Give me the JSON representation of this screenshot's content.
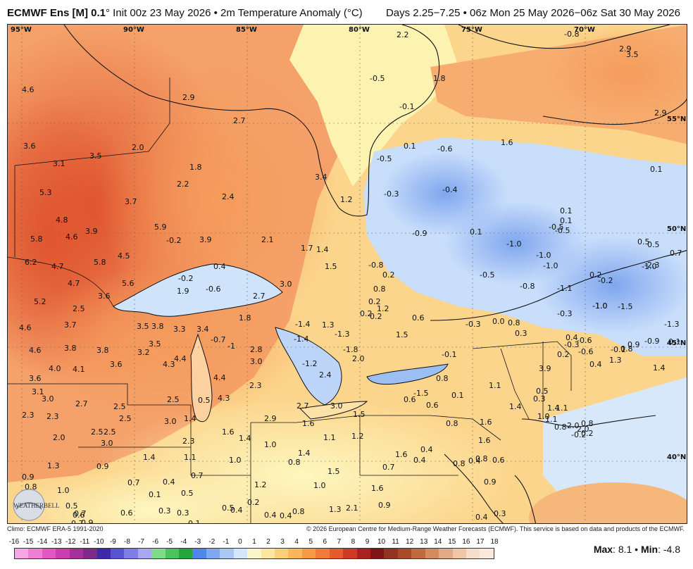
{
  "header": {
    "title_left_bold": "ECMWF Ens [M] 0.1",
    "title_left_rest": "° Init 00z 23 May 2026 • 2m Temperature Anomaly (°C)",
    "title_right": "Days 2.25−7.25 • 06z Mon 25 May 2026−06z Sat 30 May 2026"
  },
  "map": {
    "longitude_labels": [
      "95°W",
      "90°W",
      "85°W",
      "80°W",
      "75°W",
      "70°W"
    ],
    "latitude_labels": [
      "55°N",
      "50°N",
      "45°N",
      "40°N"
    ],
    "anomaly_values": [
      {
        "v": "4.6"
      },
      {
        "v": "3.6"
      },
      {
        "v": "3.1"
      },
      {
        "v": "3.5"
      },
      {
        "v": "2.0"
      },
      {
        "v": "1.8"
      },
      {
        "v": "2.9"
      },
      {
        "v": "2.7"
      },
      {
        "v": "2.2"
      },
      {
        "v": "2.4"
      },
      {
        "v": "5.3"
      },
      {
        "v": "3.7"
      },
      {
        "v": "4.8"
      },
      {
        "v": "3.9"
      },
      {
        "v": "5.9"
      },
      {
        "v": "-0.2"
      },
      {
        "v": "3.9"
      },
      {
        "v": "2.1"
      },
      {
        "v": "1.7"
      },
      {
        "v": "1.4"
      },
      {
        "v": "5.8"
      },
      {
        "v": "4.6"
      },
      {
        "v": "4.5"
      },
      {
        "v": "1.5"
      },
      {
        "v": "6.2"
      },
      {
        "v": "4.7"
      },
      {
        "v": "5.8"
      },
      {
        "v": "0.4"
      },
      {
        "v": "-0.8"
      },
      {
        "v": "4.7"
      },
      {
        "v": "5.6"
      },
      {
        "v": "-0.2"
      },
      {
        "v": "-0.6"
      },
      {
        "v": "3.0"
      },
      {
        "v": "0.2"
      },
      {
        "v": "5.2"
      },
      {
        "v": "3.6"
      },
      {
        "v": "1.9"
      },
      {
        "v": "2.7"
      },
      {
        "v": "0.8"
      },
      {
        "v": "2.5"
      },
      {
        "v": "1.2"
      },
      {
        "v": "4.6"
      },
      {
        "v": "3.7"
      },
      {
        "v": "3.5"
      },
      {
        "v": "3.8"
      },
      {
        "v": "3.3"
      },
      {
        "v": "3.4"
      },
      {
        "v": "1.8"
      },
      {
        "v": "-1.4"
      },
      {
        "v": "1.3"
      },
      {
        "v": "-1.3"
      },
      {
        "v": "0.2"
      },
      {
        "v": "0.6"
      },
      {
        "v": "1.5"
      },
      {
        "v": "4.6"
      },
      {
        "v": "3.8"
      },
      {
        "v": "3.8"
      },
      {
        "v": "3.2"
      },
      {
        "v": "3.5"
      },
      {
        "v": "-0.7"
      },
      {
        "v": "-1"
      },
      {
        "v": "2.8"
      },
      {
        "v": "-1.4"
      },
      {
        "v": "-1.8"
      },
      {
        "v": "4.0"
      },
      {
        "v": "4.1"
      },
      {
        "v": "3.6"
      },
      {
        "v": "4.3"
      },
      {
        "v": "4.4"
      },
      {
        "v": "3.0"
      },
      {
        "v": "-1.2"
      },
      {
        "v": "2.0"
      },
      {
        "v": "3.6"
      },
      {
        "v": "4.4"
      },
      {
        "v": "2.3"
      },
      {
        "v": "2.4"
      },
      {
        "v": "3.1"
      },
      {
        "v": "3.0"
      },
      {
        "v": "2.7"
      },
      {
        "v": "2.5"
      },
      {
        "v": "2.5"
      },
      {
        "v": "0.5"
      },
      {
        "v": "4.3"
      },
      {
        "v": "2.5"
      },
      {
        "v": "2.7"
      },
      {
        "v": "3.0"
      },
      {
        "v": "1.5"
      },
      {
        "v": "2.3"
      },
      {
        "v": "2.3"
      },
      {
        "v": "2.5"
      },
      {
        "v": "3.0"
      },
      {
        "v": "3.0"
      },
      {
        "v": "1.4"
      },
      {
        "v": "2.9"
      },
      {
        "v": "1.6"
      },
      {
        "v": "2.0"
      },
      {
        "v": "2.5"
      },
      {
        "v": "2.3"
      },
      {
        "v": "1.6"
      },
      {
        "v": "1.4"
      },
      {
        "v": "1.0"
      },
      {
        "v": "1.1"
      },
      {
        "v": "1.2"
      },
      {
        "v": "1.3"
      },
      {
        "v": "0.9"
      },
      {
        "v": "1.4"
      },
      {
        "v": "1.1"
      },
      {
        "v": "1.0"
      },
      {
        "v": "0.8"
      },
      {
        "v": "1.4"
      },
      {
        "v": "1.6"
      },
      {
        "v": "0.9"
      },
      {
        "v": "0.8"
      },
      {
        "v": "1.0"
      },
      {
        "v": "0.7"
      },
      {
        "v": "0.7"
      },
      {
        "v": "0.4"
      },
      {
        "v": "0.1"
      },
      {
        "v": "0.5"
      },
      {
        "v": "0.7"
      },
      {
        "v": "0.6"
      },
      {
        "v": "0.9"
      },
      {
        "v": "1.2"
      },
      {
        "v": "1.0"
      },
      {
        "v": "1.5"
      },
      {
        "v": "1.6"
      },
      {
        "v": "0.7"
      },
      {
        "v": "0.5"
      },
      {
        "v": "0.7"
      },
      {
        "v": "0.6"
      },
      {
        "v": "0.3"
      },
      {
        "v": "0.5"
      },
      {
        "v": "0.2"
      },
      {
        "v": "0.4"
      },
      {
        "v": "0.4"
      },
      {
        "v": "0.8"
      },
      {
        "v": "1.3"
      },
      {
        "v": "2.1"
      },
      {
        "v": "0.9"
      },
      {
        "v": "0.1"
      },
      {
        "v": "0.3"
      },
      {
        "v": "0.4"
      },
      {
        "v": "2.2"
      },
      {
        "v": "1.8"
      },
      {
        "v": "-0.5"
      },
      {
        "v": "-0.1"
      },
      {
        "v": "0.1"
      },
      {
        "v": "-0.6"
      },
      {
        "v": "1.6"
      },
      {
        "v": "-0.5"
      },
      {
        "v": "3.4"
      },
      {
        "v": "-0.4"
      },
      {
        "v": "1.2"
      },
      {
        "v": "-0.3"
      },
      {
        "v": "-0.9"
      },
      {
        "v": "0.1"
      },
      {
        "v": "-1.0"
      },
      {
        "v": "0.1"
      },
      {
        "v": "-0.5"
      },
      {
        "v": "-1.0"
      },
      {
        "v": "-1.0"
      },
      {
        "v": "-0.5"
      },
      {
        "v": "-0.8"
      },
      {
        "v": "-1.1"
      },
      {
        "v": "-1.0"
      },
      {
        "v": "0.5"
      },
      {
        "v": "-0.3"
      },
      {
        "v": "0.0"
      },
      {
        "v": "0.8"
      },
      {
        "v": "0.3"
      },
      {
        "v": "-0.6"
      },
      {
        "v": "-0.3"
      },
      {
        "v": "-1.5"
      },
      {
        "v": "0.8"
      },
      {
        "v": "-0.1"
      },
      {
        "v": "0.2"
      },
      {
        "v": "0.2"
      },
      {
        "v": "0.1"
      },
      {
        "v": "0.6"
      },
      {
        "v": "0.6"
      },
      {
        "v": "0.8"
      },
      {
        "v": "1.1"
      },
      {
        "v": "0.5"
      },
      {
        "v": "0.3"
      },
      {
        "v": "1.4"
      },
      {
        "v": "1.0"
      },
      {
        "v": "1.4"
      },
      {
        "v": "1.1"
      },
      {
        "v": "1.6"
      },
      {
        "v": "0.6"
      },
      {
        "v": "0.8"
      },
      {
        "v": "0.4"
      },
      {
        "v": "0.4"
      },
      {
        "v": "0.8"
      },
      {
        "v": "0.4"
      },
      {
        "v": "0.9"
      },
      {
        "v": "0.3"
      },
      {
        "v": "0.4"
      },
      {
        "v": "2.9"
      },
      {
        "v": "-0.8"
      },
      {
        "v": "2.9"
      },
      {
        "v": "0.1"
      },
      {
        "v": "0.1"
      },
      {
        "v": "-0.5"
      },
      {
        "v": "0.5"
      },
      {
        "v": "-1.0"
      },
      {
        "v": "-2.3"
      },
      {
        "v": "0.2"
      },
      {
        "v": "-0.2"
      },
      {
        "v": "-1.0"
      },
      {
        "v": "-1.5"
      },
      {
        "v": "-1.3"
      },
      {
        "v": "-0.1"
      },
      {
        "v": "-0.9"
      },
      {
        "v": "0.4"
      },
      {
        "v": "1.3"
      },
      {
        "v": "0.2"
      },
      {
        "v": "1.1"
      },
      {
        "v": "2.0"
      },
      {
        "v": "0.2"
      },
      {
        "v": "-0.2"
      },
      {
        "v": "-0.6"
      },
      {
        "v": "0.4"
      },
      {
        "v": "0.8"
      },
      {
        "v": "-0.3"
      },
      {
        "v": "1.6"
      },
      {
        "v": "3.9"
      },
      {
        "v": "3.5"
      },
      {
        "v": "0.8"
      },
      {
        "v": "2.0"
      },
      {
        "v": "0.7"
      },
      {
        "v": "0.8"
      },
      {
        "v": "0.9"
      },
      {
        "v": "0.1"
      },
      {
        "v": "1.4"
      }
    ],
    "logo_text": "WEATHERBELL"
  },
  "footer": {
    "climo": "Climo: ECMWF ERA-5 1991-2020",
    "copyright": "© 2026 European Centre for Medium-Range Weather Forecasts (ECMWF). This service is based on data and products of the ECMWF.",
    "max_label": "Max",
    "max_value": "8.1",
    "min_label": "Min",
    "min_value": "-4.8"
  },
  "colorbar": {
    "labels": [
      "-16",
      "-15",
      "-14",
      "-13",
      "-12",
      "-11",
      "-10",
      "-9",
      "-8",
      "-7",
      "-6",
      "-5",
      "-4",
      "-3",
      "-2",
      "-1",
      "0",
      "1",
      "2",
      "3",
      "4",
      "5",
      "6",
      "7",
      "8",
      "9",
      "10",
      "11",
      "12",
      "13",
      "14",
      "15",
      "16",
      "17",
      "18"
    ],
    "colors": [
      "#f7a8e3",
      "#ef7fd6",
      "#e157c6",
      "#c93fb0",
      "#a5309a",
      "#7f2a8a",
      "#3e2aa8",
      "#5553d0",
      "#7e7ee6",
      "#aaa7f2",
      "#7ddc86",
      "#4cc25a",
      "#25a63a",
      "#4f86e8",
      "#7ea8f0",
      "#a9c8f6",
      "#d4e6fb",
      "#fbf6c8",
      "#fde7a0",
      "#fccf7a",
      "#fbb55a",
      "#f79a45",
      "#f07a3a",
      "#e65a30",
      "#cf3a26",
      "#a8221e",
      "#801416",
      "#93341f",
      "#a94a2a",
      "#bf6a3f",
      "#d48c5e",
      "#e3ab84",
      "#efc7a6",
      "#f6decb",
      "#fbe9de"
    ]
  }
}
